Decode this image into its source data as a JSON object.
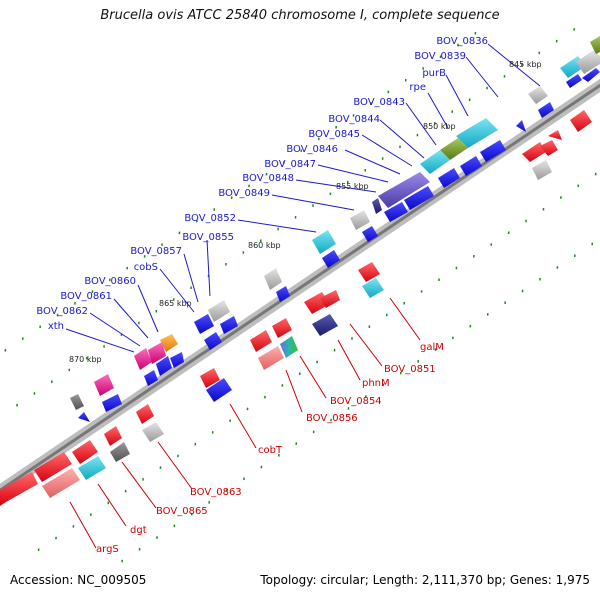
{
  "title": "Brucella ovis ATCC 25840 chromosome I, complete sequence",
  "footer": {
    "accession": "Accession: NC_009505",
    "summary": "Topology: circular; Length: 2,111,370 bp; Genes: 1,975"
  },
  "colors": {
    "backbone": "#8a8a8a",
    "label_top": "#1a1ad0",
    "label_bottom": "#d00000",
    "tick": "#1a8a1a",
    "red": "#e8101a",
    "blue": "#1414e6",
    "salmon": "#f08080",
    "cyan": "#22c4d8",
    "gray": "#b8b8b8",
    "navy": "#2a2a8a",
    "purple": "#6a5ac8",
    "olive": "#7a9a30",
    "magenta": "#e8208c",
    "orange": "#f0901a"
  },
  "kbp_labels": [
    "845 kbp",
    "850 kbp",
    "855 kbp",
    "860 kbp",
    "865 kbp",
    "870 kbp"
  ],
  "top_labels": [
    "BOV_0836",
    "BOV_0839",
    "purB",
    "rpe",
    "BOV_0843",
    "BOV_0844",
    "BOV_0845",
    "BOV_0846",
    "BOV_0847",
    "BOV_0848",
    "BOV_0849",
    "BOV_0852",
    "BOV_0855",
    "BOV_0857",
    "cobS",
    "BOV_0860",
    "BOV_0861",
    "BOV_0862",
    "xth"
  ],
  "bottom_labels": [
    "galM",
    "BOV_0851",
    "phnM",
    "BOV_0854",
    "BOV_0856",
    "cobT",
    "BOV_0863",
    "BOV_0865",
    "dgt",
    "argS"
  ]
}
